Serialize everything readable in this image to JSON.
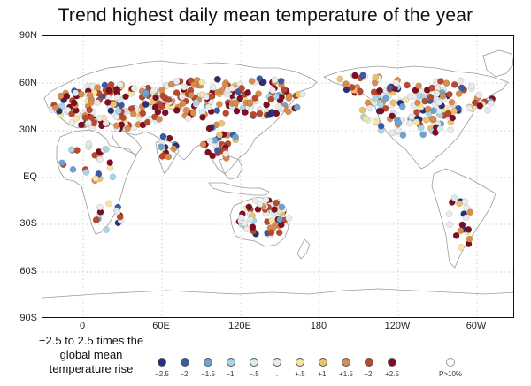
{
  "title": "Trend highest daily mean temperature of the year",
  "y_axis_labels": [
    "90N",
    "60N",
    "30N",
    "EQ",
    "30S",
    "60S",
    "90S"
  ],
  "x_axis_labels": [
    "0",
    "60E",
    "120E",
    "180",
    "120W",
    "60W"
  ],
  "caption_lines": [
    "−2.5 to 2.5 times the",
    "global mean",
    "temperature rise"
  ],
  "legend": [
    {
      "label": "−2.5",
      "color": "#27307a"
    },
    {
      "label": "−2.",
      "color": "#3a5aa8"
    },
    {
      "label": "−1.5",
      "color": "#6ea3cf"
    },
    {
      "label": "−1.",
      "color": "#a8d3e8"
    },
    {
      "label": "−.5",
      "color": "#d6ecf1"
    },
    {
      "label": ".",
      "color": "#eaeaea"
    },
    {
      "label": "+.5",
      "color": "#f5e5a8"
    },
    {
      "label": "+1.",
      "color": "#ecc26a"
    },
    {
      "label": "+1.5",
      "color": "#d98c4d"
    },
    {
      "label": "+2.",
      "color": "#b8482e"
    },
    {
      "label": "+2.5",
      "color": "#7e0e22"
    },
    {
      "label": "P>10%",
      "color": "#e0e0e0"
    }
  ]
}
